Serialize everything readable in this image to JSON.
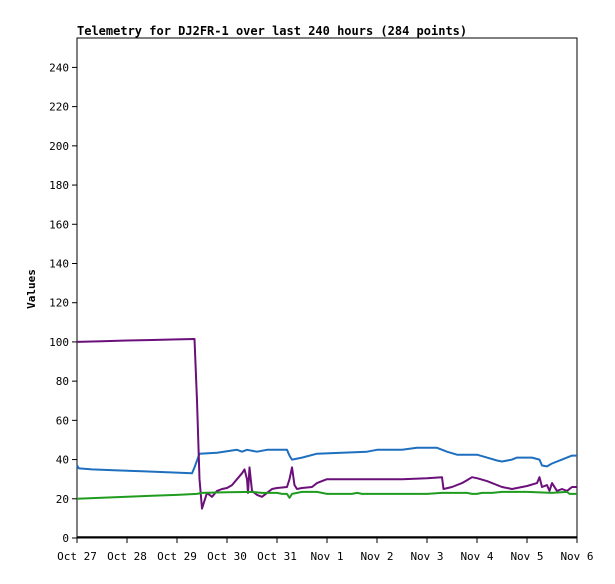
{
  "chart_data": {
    "type": "line",
    "title": "Telemetry for DJ2FR-1 over last 240 hours (284 points)",
    "xlabel": "",
    "ylabel": "Values",
    "ylim": [
      0,
      255
    ],
    "x_tick_labels": [
      "Oct 27",
      "Oct 28",
      "Oct 29",
      "Oct 30",
      "Oct 31",
      "Nov 1",
      "Nov 2",
      "Nov 3",
      "Nov 4",
      "Nov 5",
      "Nov 6"
    ],
    "y_ticks": [
      0,
      20,
      40,
      60,
      80,
      100,
      120,
      140,
      160,
      180,
      200,
      220,
      240
    ],
    "grid": false,
    "series": [
      {
        "color": "#1f6fbf",
        "points": [
          [
            0.0,
            37
          ],
          [
            0.04,
            35.5
          ],
          [
            0.3,
            35
          ],
          [
            0.8,
            34.5
          ],
          [
            1.3,
            34
          ],
          [
            1.8,
            33.5
          ],
          [
            2.3,
            33
          ],
          [
            2.35,
            36
          ],
          [
            2.45,
            43
          ],
          [
            2.8,
            43.5
          ],
          [
            3.2,
            45
          ],
          [
            3.3,
            44
          ],
          [
            3.4,
            45
          ],
          [
            3.6,
            44
          ],
          [
            3.8,
            45
          ],
          [
            4.2,
            45
          ],
          [
            4.25,
            42
          ],
          [
            4.3,
            40
          ],
          [
            4.5,
            41
          ],
          [
            4.8,
            43
          ],
          [
            5.3,
            43.5
          ],
          [
            5.8,
            44
          ],
          [
            6.0,
            45
          ],
          [
            6.5,
            45
          ],
          [
            6.8,
            46
          ],
          [
            7.2,
            46
          ],
          [
            7.4,
            44
          ],
          [
            7.6,
            42.5
          ],
          [
            8.0,
            42.5
          ],
          [
            8.2,
            41
          ],
          [
            8.4,
            39.5
          ],
          [
            8.5,
            39
          ],
          [
            8.7,
            40
          ],
          [
            8.8,
            41
          ],
          [
            9.1,
            41
          ],
          [
            9.25,
            40
          ],
          [
            9.3,
            37
          ],
          [
            9.4,
            36.5
          ],
          [
            9.5,
            38
          ],
          [
            9.7,
            40
          ],
          [
            9.9,
            42
          ],
          [
            10.0,
            42
          ]
        ]
      },
      {
        "color": "#6b0f7a",
        "points": [
          [
            0.0,
            100
          ],
          [
            0.5,
            100.3
          ],
          [
            1.0,
            100.7
          ],
          [
            1.5,
            101
          ],
          [
            2.0,
            101.3
          ],
          [
            2.35,
            101.5
          ],
          [
            2.4,
            70
          ],
          [
            2.45,
            30
          ],
          [
            2.5,
            15
          ],
          [
            2.55,
            19
          ],
          [
            2.6,
            23
          ],
          [
            2.7,
            21
          ],
          [
            2.8,
            24
          ],
          [
            2.9,
            25
          ],
          [
            3.0,
            25.5
          ],
          [
            3.1,
            27
          ],
          [
            3.2,
            30
          ],
          [
            3.3,
            33
          ],
          [
            3.35,
            35
          ],
          [
            3.4,
            30
          ],
          [
            3.42,
            23
          ],
          [
            3.45,
            36
          ],
          [
            3.5,
            24
          ],
          [
            3.6,
            22
          ],
          [
            3.7,
            21
          ],
          [
            3.8,
            23
          ],
          [
            3.9,
            25
          ],
          [
            4.0,
            25.5
          ],
          [
            4.2,
            26
          ],
          [
            4.25,
            30
          ],
          [
            4.3,
            36
          ],
          [
            4.35,
            27
          ],
          [
            4.4,
            25
          ],
          [
            4.5,
            25.5
          ],
          [
            4.7,
            26
          ],
          [
            4.8,
            28
          ],
          [
            4.9,
            29
          ],
          [
            5.0,
            30
          ],
          [
            5.5,
            30
          ],
          [
            6.0,
            30
          ],
          [
            6.5,
            30
          ],
          [
            7.0,
            30.5
          ],
          [
            7.3,
            31
          ],
          [
            7.33,
            25
          ],
          [
            7.5,
            26
          ],
          [
            7.7,
            28
          ],
          [
            7.8,
            29.5
          ],
          [
            7.9,
            31
          ],
          [
            8.0,
            30.5
          ],
          [
            8.2,
            29
          ],
          [
            8.5,
            26
          ],
          [
            8.7,
            25
          ],
          [
            9.0,
            26.5
          ],
          [
            9.2,
            28
          ],
          [
            9.25,
            31
          ],
          [
            9.3,
            26
          ],
          [
            9.4,
            27
          ],
          [
            9.45,
            24
          ],
          [
            9.5,
            28
          ],
          [
            9.6,
            24
          ],
          [
            9.7,
            25
          ],
          [
            9.8,
            24
          ],
          [
            9.9,
            26
          ],
          [
            10.0,
            26
          ]
        ]
      },
      {
        "color": "#1f9b1f",
        "points": [
          [
            0.0,
            20
          ],
          [
            0.5,
            20.5
          ],
          [
            1.0,
            21
          ],
          [
            1.5,
            21.5
          ],
          [
            2.0,
            22
          ],
          [
            2.4,
            22.5
          ],
          [
            2.5,
            23
          ],
          [
            3.0,
            23.3
          ],
          [
            3.5,
            23.5
          ],
          [
            3.7,
            23
          ],
          [
            4.0,
            23
          ],
          [
            4.1,
            22.5
          ],
          [
            4.2,
            22.5
          ],
          [
            4.25,
            20.5
          ],
          [
            4.3,
            22.5
          ],
          [
            4.5,
            23.5
          ],
          [
            4.8,
            23.5
          ],
          [
            5.0,
            22.5
          ],
          [
            5.5,
            22.5
          ],
          [
            5.6,
            23
          ],
          [
            5.7,
            22.5
          ],
          [
            6.0,
            22.5
          ],
          [
            7.0,
            22.5
          ],
          [
            7.3,
            23
          ],
          [
            7.8,
            23
          ],
          [
            7.9,
            22.5
          ],
          [
            8.0,
            22.5
          ],
          [
            8.1,
            23
          ],
          [
            8.3,
            23
          ],
          [
            8.5,
            23.5
          ],
          [
            9.0,
            23.5
          ],
          [
            9.5,
            23
          ],
          [
            9.8,
            23.5
          ],
          [
            9.85,
            22.5
          ],
          [
            10.0,
            22.5
          ]
        ]
      },
      {
        "color": "#000000",
        "points": [
          [
            0.0,
            0.4
          ],
          [
            10.0,
            0.4
          ]
        ]
      }
    ]
  }
}
